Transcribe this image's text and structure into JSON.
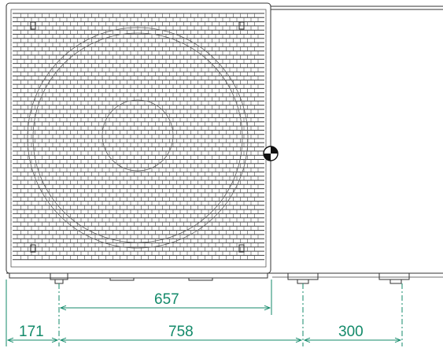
{
  "dimensions": {
    "fan_section_width": "657",
    "left_offset": "171",
    "unit_width": "758",
    "right_offset": "300"
  },
  "colors": {
    "dimension": "#138a6a",
    "outline": "#333333",
    "background": "#ffffff"
  },
  "icons": {
    "center_mark": "center-of-gravity-icon"
  }
}
